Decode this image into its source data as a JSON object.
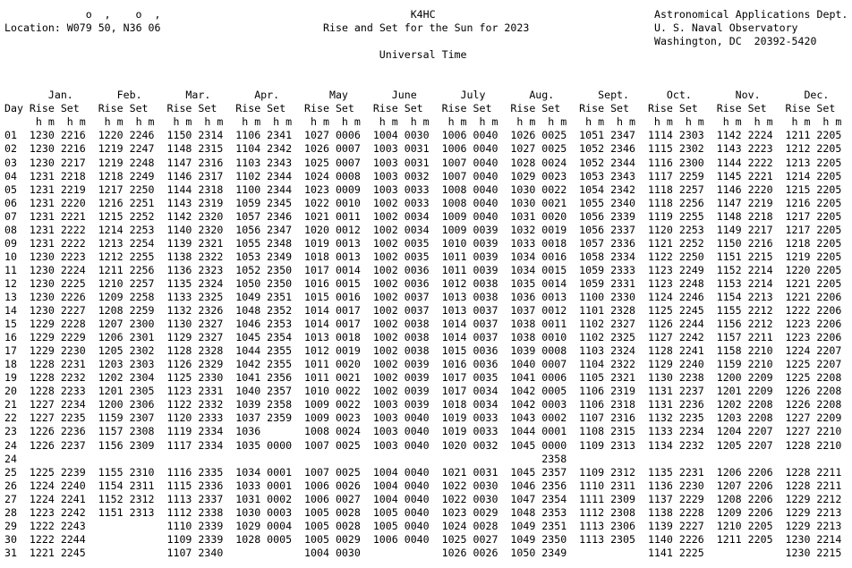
{
  "header": {
    "degree_minute_marks": "o  ,    o  ,",
    "location": "Location: W079 50, N36 06",
    "callsign": "K4HC",
    "title": "Rise and Set for the Sun for 2023",
    "time_system": "Universal Time",
    "org_line1": "Astronomical Applications Dept.",
    "org_line2": "U. S. Naval Observatory",
    "org_line3": "Washington, DC  20392-5420"
  },
  "colors": {
    "text": "#000000",
    "background": "#ffffff"
  },
  "table": {
    "day_label": "Day",
    "rise_label": "Rise",
    "set_label": "Set",
    "units_label": "h m",
    "months": [
      "Jan.",
      "Feb.",
      "Mar.",
      "Apr.",
      "May",
      "June",
      "July",
      "Aug.",
      "Sept.",
      "Oct.",
      "Nov.",
      "Dec."
    ],
    "rows": [
      [
        "01",
        "1230",
        "2216",
        "1220",
        "2246",
        "1150",
        "2314",
        "1106",
        "2341",
        "1027",
        "0006",
        "1004",
        "0030",
        "1006",
        "0040",
        "1026",
        "0025",
        "1051",
        "2347",
        "1114",
        "2303",
        "1142",
        "2224",
        "1211",
        "2205"
      ],
      [
        "02",
        "1230",
        "2216",
        "1219",
        "2247",
        "1148",
        "2315",
        "1104",
        "2342",
        "1026",
        "0007",
        "1003",
        "0031",
        "1006",
        "0040",
        "1027",
        "0025",
        "1052",
        "2346",
        "1115",
        "2302",
        "1143",
        "2223",
        "1212",
        "2205"
      ],
      [
        "03",
        "1230",
        "2217",
        "1219",
        "2248",
        "1147",
        "2316",
        "1103",
        "2343",
        "1025",
        "0007",
        "1003",
        "0031",
        "1007",
        "0040",
        "1028",
        "0024",
        "1052",
        "2344",
        "1116",
        "2300",
        "1144",
        "2222",
        "1213",
        "2205"
      ],
      [
        "04",
        "1231",
        "2218",
        "1218",
        "2249",
        "1146",
        "2317",
        "1102",
        "2344",
        "1024",
        "0008",
        "1003",
        "0032",
        "1007",
        "0040",
        "1029",
        "0023",
        "1053",
        "2343",
        "1117",
        "2259",
        "1145",
        "2221",
        "1214",
        "2205"
      ],
      [
        "05",
        "1231",
        "2219",
        "1217",
        "2250",
        "1144",
        "2318",
        "1100",
        "2344",
        "1023",
        "0009",
        "1003",
        "0033",
        "1008",
        "0040",
        "1030",
        "0022",
        "1054",
        "2342",
        "1118",
        "2257",
        "1146",
        "2220",
        "1215",
        "2205"
      ],
      [
        "06",
        "1231",
        "2220",
        "1216",
        "2251",
        "1143",
        "2319",
        "1059",
        "2345",
        "1022",
        "0010",
        "1002",
        "0033",
        "1008",
        "0040",
        "1030",
        "0021",
        "1055",
        "2340",
        "1118",
        "2256",
        "1147",
        "2219",
        "1216",
        "2205"
      ],
      [
        "07",
        "1231",
        "2221",
        "1215",
        "2252",
        "1142",
        "2320",
        "1057",
        "2346",
        "1021",
        "0011",
        "1002",
        "0034",
        "1009",
        "0040",
        "1031",
        "0020",
        "1056",
        "2339",
        "1119",
        "2255",
        "1148",
        "2218",
        "1217",
        "2205"
      ],
      [
        "08",
        "1231",
        "2222",
        "1214",
        "2253",
        "1140",
        "2320",
        "1056",
        "2347",
        "1020",
        "0012",
        "1002",
        "0034",
        "1009",
        "0039",
        "1032",
        "0019",
        "1056",
        "2337",
        "1120",
        "2253",
        "1149",
        "2217",
        "1217",
        "2205"
      ],
      [
        "09",
        "1231",
        "2222",
        "1213",
        "2254",
        "1139",
        "2321",
        "1055",
        "2348",
        "1019",
        "0013",
        "1002",
        "0035",
        "1010",
        "0039",
        "1033",
        "0018",
        "1057",
        "2336",
        "1121",
        "2252",
        "1150",
        "2216",
        "1218",
        "2205"
      ],
      [
        "10",
        "1230",
        "2223",
        "1212",
        "2255",
        "1138",
        "2322",
        "1053",
        "2349",
        "1018",
        "0013",
        "1002",
        "0035",
        "1011",
        "0039",
        "1034",
        "0016",
        "1058",
        "2334",
        "1122",
        "2250",
        "1151",
        "2215",
        "1219",
        "2205"
      ],
      [
        "11",
        "1230",
        "2224",
        "1211",
        "2256",
        "1136",
        "2323",
        "1052",
        "2350",
        "1017",
        "0014",
        "1002",
        "0036",
        "1011",
        "0039",
        "1034",
        "0015",
        "1059",
        "2333",
        "1123",
        "2249",
        "1152",
        "2214",
        "1220",
        "2205"
      ],
      [
        "12",
        "1230",
        "2225",
        "1210",
        "2257",
        "1135",
        "2324",
        "1050",
        "2350",
        "1016",
        "0015",
        "1002",
        "0036",
        "1012",
        "0038",
        "1035",
        "0014",
        "1059",
        "2331",
        "1123",
        "2248",
        "1153",
        "2214",
        "1221",
        "2205"
      ],
      [
        "13",
        "1230",
        "2226",
        "1209",
        "2258",
        "1133",
        "2325",
        "1049",
        "2351",
        "1015",
        "0016",
        "1002",
        "0037",
        "1013",
        "0038",
        "1036",
        "0013",
        "1100",
        "2330",
        "1124",
        "2246",
        "1154",
        "2213",
        "1221",
        "2206"
      ],
      [
        "14",
        "1230",
        "2227",
        "1208",
        "2259",
        "1132",
        "2326",
        "1048",
        "2352",
        "1014",
        "0017",
        "1002",
        "0037",
        "1013",
        "0037",
        "1037",
        "0012",
        "1101",
        "2328",
        "1125",
        "2245",
        "1155",
        "2212",
        "1222",
        "2206"
      ],
      [
        "15",
        "1229",
        "2228",
        "1207",
        "2300",
        "1130",
        "2327",
        "1046",
        "2353",
        "1014",
        "0017",
        "1002",
        "0038",
        "1014",
        "0037",
        "1038",
        "0011",
        "1102",
        "2327",
        "1126",
        "2244",
        "1156",
        "2212",
        "1223",
        "2206"
      ],
      [
        "16",
        "1229",
        "2229",
        "1206",
        "2301",
        "1129",
        "2327",
        "1045",
        "2354",
        "1013",
        "0018",
        "1002",
        "0038",
        "1014",
        "0037",
        "1038",
        "0010",
        "1102",
        "2325",
        "1127",
        "2242",
        "1157",
        "2211",
        "1223",
        "2206"
      ],
      [
        "17",
        "1229",
        "2230",
        "1205",
        "2302",
        "1128",
        "2328",
        "1044",
        "2355",
        "1012",
        "0019",
        "1002",
        "0038",
        "1015",
        "0036",
        "1039",
        "0008",
        "1103",
        "2324",
        "1128",
        "2241",
        "1158",
        "2210",
        "1224",
        "2207"
      ],
      [
        "18",
        "1228",
        "2231",
        "1203",
        "2303",
        "1126",
        "2329",
        "1042",
        "2355",
        "1011",
        "0020",
        "1002",
        "0039",
        "1016",
        "0036",
        "1040",
        "0007",
        "1104",
        "2322",
        "1129",
        "2240",
        "1159",
        "2210",
        "1225",
        "2207"
      ],
      [
        "19",
        "1228",
        "2232",
        "1202",
        "2304",
        "1125",
        "2330",
        "1041",
        "2356",
        "1011",
        "0021",
        "1002",
        "0039",
        "1017",
        "0035",
        "1041",
        "0006",
        "1105",
        "2321",
        "1130",
        "2238",
        "1200",
        "2209",
        "1225",
        "2208"
      ],
      [
        "20",
        "1228",
        "2233",
        "1201",
        "2305",
        "1123",
        "2331",
        "1040",
        "2357",
        "1010",
        "0022",
        "1002",
        "0039",
        "1017",
        "0034",
        "1042",
        "0005",
        "1106",
        "2319",
        "1131",
        "2237",
        "1201",
        "2209",
        "1226",
        "2208"
      ],
      [
        "21",
        "1227",
        "2234",
        "1200",
        "2306",
        "1122",
        "2332",
        "1039",
        "2358",
        "1009",
        "0022",
        "1003",
        "0039",
        "1018",
        "0034",
        "1042",
        "0003",
        "1106",
        "2318",
        "1131",
        "2236",
        "1202",
        "2208",
        "1226",
        "2208"
      ],
      [
        "22",
        "1227",
        "2235",
        "1159",
        "2307",
        "1120",
        "2333",
        "1037",
        "2359",
        "1009",
        "0023",
        "1003",
        "0040",
        "1019",
        "0033",
        "1043",
        "0002",
        "1107",
        "2316",
        "1132",
        "2235",
        "1203",
        "2208",
        "1227",
        "2209"
      ],
      [
        "23",
        "1226",
        "2236",
        "1157",
        "2308",
        "1119",
        "2334",
        "1036",
        "",
        "1008",
        "0024",
        "1003",
        "0040",
        "1019",
        "0033",
        "1044",
        "0001",
        "1108",
        "2315",
        "1133",
        "2234",
        "1204",
        "2207",
        "1227",
        "2210"
      ],
      [
        "24",
        "1226",
        "2237",
        "1156",
        "2309",
        "1117",
        "2334",
        "1035",
        "0000",
        "1007",
        "0025",
        "1003",
        "0040",
        "1020",
        "0032",
        "1045",
        "0000",
        "1109",
        "2313",
        "1134",
        "2232",
        "1205",
        "2207",
        "1228",
        "2210"
      ],
      [
        "24",
        "",
        "",
        "",
        "",
        "",
        "",
        "",
        "",
        "",
        "",
        "",
        "",
        "",
        "",
        "",
        "2358",
        "",
        "",
        "",
        "",
        "",
        "",
        "",
        ""
      ],
      [
        "25",
        "1225",
        "2239",
        "1155",
        "2310",
        "1116",
        "2335",
        "1034",
        "0001",
        "1007",
        "0025",
        "1004",
        "0040",
        "1021",
        "0031",
        "1045",
        "2357",
        "1109",
        "2312",
        "1135",
        "2231",
        "1206",
        "2206",
        "1228",
        "2211"
      ],
      [
        "26",
        "1224",
        "2240",
        "1154",
        "2311",
        "1115",
        "2336",
        "1033",
        "0001",
        "1006",
        "0026",
        "1004",
        "0040",
        "1022",
        "0030",
        "1046",
        "2356",
        "1110",
        "2311",
        "1136",
        "2230",
        "1207",
        "2206",
        "1228",
        "2211"
      ],
      [
        "27",
        "1224",
        "2241",
        "1152",
        "2312",
        "1113",
        "2337",
        "1031",
        "0002",
        "1006",
        "0027",
        "1004",
        "0040",
        "1022",
        "0030",
        "1047",
        "2354",
        "1111",
        "2309",
        "1137",
        "2229",
        "1208",
        "2206",
        "1229",
        "2212"
      ],
      [
        "28",
        "1223",
        "2242",
        "1151",
        "2313",
        "1112",
        "2338",
        "1030",
        "0003",
        "1005",
        "0028",
        "1005",
        "0040",
        "1023",
        "0029",
        "1048",
        "2353",
        "1112",
        "2308",
        "1138",
        "2228",
        "1209",
        "2206",
        "1229",
        "2213"
      ],
      [
        "29",
        "1222",
        "2243",
        "",
        "",
        "1110",
        "2339",
        "1029",
        "0004",
        "1005",
        "0028",
        "1005",
        "0040",
        "1024",
        "0028",
        "1049",
        "2351",
        "1113",
        "2306",
        "1139",
        "2227",
        "1210",
        "2205",
        "1229",
        "2213"
      ],
      [
        "30",
        "1222",
        "2244",
        "",
        "",
        "1109",
        "2339",
        "1028",
        "0005",
        "1005",
        "0029",
        "1006",
        "0040",
        "1025",
        "0027",
        "1049",
        "2350",
        "1113",
        "2305",
        "1140",
        "2226",
        "1211",
        "2205",
        "1230",
        "2214"
      ],
      [
        "31",
        "1221",
        "2245",
        "",
        "",
        "1107",
        "2340",
        "",
        "",
        "1004",
        "0030",
        "",
        "",
        "1026",
        "0026",
        "1050",
        "2349",
        "",
        "",
        "1141",
        "2225",
        "",
        "",
        "1230",
        "2215"
      ]
    ]
  }
}
